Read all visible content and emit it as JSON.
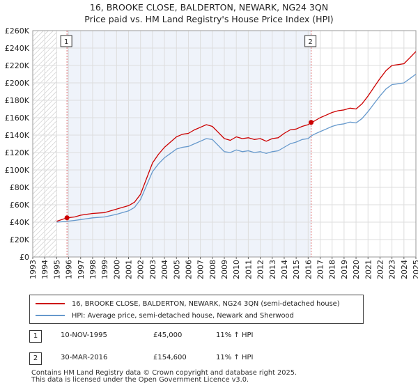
{
  "title_line1": "16, BROOKE CLOSE, BALDERTON, NEWARK, NG24 3QN",
  "title_line2": "Price paid vs. HM Land Registry's House Price Index (HPI)",
  "chart_data": {
    "type": "line",
    "title": "16, BROOKE CLOSE, BALDERTON, NEWARK, NG24 3QN",
    "subtitle": "Price paid vs. HM Land Registry's House Price Index (HPI)",
    "xlabel": "",
    "ylabel": "",
    "xlim": [
      1993,
      2025
    ],
    "ylim": [
      0,
      260000
    ],
    "x_ticks": [
      1993,
      1994,
      1995,
      1996,
      1997,
      1998,
      1999,
      2000,
      2001,
      2002,
      2003,
      2004,
      2005,
      2006,
      2007,
      2008,
      2009,
      2010,
      2011,
      2012,
      2013,
      2014,
      2015,
      2016,
      2017,
      2018,
      2019,
      2020,
      2021,
      2022,
      2023,
      2024,
      2025
    ],
    "y_ticks": [
      0,
      20000,
      40000,
      60000,
      80000,
      100000,
      120000,
      140000,
      160000,
      180000,
      200000,
      220000,
      240000,
      260000
    ],
    "y_tick_labels": [
      "£0",
      "£20K",
      "£40K",
      "£60K",
      "£80K",
      "£100K",
      "£120K",
      "£140K",
      "£160K",
      "£180K",
      "£200K",
      "£220K",
      "£240K",
      "£260K"
    ],
    "grid": true,
    "hatched_regions": [
      [
        1993,
        1995.0
      ],
      [
        2025,
        2025.3
      ]
    ],
    "shaded_region": [
      1995.86,
      2016.25
    ],
    "series": [
      {
        "name": "16, BROOKE CLOSE, BALDERTON, NEWARK, NG24 3QN (semi-detached house)",
        "color": "#cc0000",
        "x": [
          1995.0,
          1995.86,
          1996.5,
          1997.0,
          1998.0,
          1999.0,
          2000.0,
          2000.5,
          2001.0,
          2001.5,
          2002.0,
          2002.5,
          2003.0,
          2003.5,
          2004.0,
          2004.5,
          2005.0,
          2005.5,
          2006.0,
          2006.5,
          2007.0,
          2007.5,
          2008.0,
          2008.5,
          2009.0,
          2009.5,
          2010.0,
          2010.5,
          2011.0,
          2011.5,
          2012.0,
          2012.5,
          2013.0,
          2013.5,
          2014.0,
          2014.5,
          2015.0,
          2015.5,
          2016.0,
          2016.25,
          2016.5,
          2017.0,
          2017.5,
          2018.0,
          2018.5,
          2019.0,
          2019.5,
          2020.0,
          2020.5,
          2021.0,
          2021.5,
          2022.0,
          2022.5,
          2023.0,
          2023.5,
          2024.0,
          2024.5,
          2025.0
        ],
        "y": [
          41000,
          45000,
          46000,
          48000,
          50000,
          51000,
          55000,
          57000,
          59000,
          63000,
          72000,
          90000,
          108000,
          118000,
          126000,
          132000,
          138000,
          141000,
          142000,
          146000,
          149000,
          152000,
          150000,
          143000,
          136000,
          134000,
          138000,
          136000,
          137000,
          135000,
          136000,
          133000,
          136000,
          137000,
          142000,
          146000,
          147000,
          150000,
          152000,
          154600,
          156000,
          160000,
          163000,
          166000,
          168000,
          169000,
          171000,
          170000,
          176000,
          185000,
          195000,
          205000,
          214000,
          220000,
          221000,
          222000,
          229000,
          236000
        ]
      },
      {
        "name": "HPI: Average price, semi-detached house, Newark and Sherwood",
        "color": "#6699cc",
        "x": [
          1995.0,
          1995.86,
          1996.5,
          1997.0,
          1998.0,
          1999.0,
          2000.0,
          2000.5,
          2001.0,
          2001.5,
          2002.0,
          2002.5,
          2003.0,
          2003.5,
          2004.0,
          2004.5,
          2005.0,
          2005.5,
          2006.0,
          2006.5,
          2007.0,
          2007.5,
          2008.0,
          2008.5,
          2009.0,
          2009.5,
          2010.0,
          2010.5,
          2011.0,
          2011.5,
          2012.0,
          2012.5,
          2013.0,
          2013.5,
          2014.0,
          2014.5,
          2015.0,
          2015.5,
          2016.0,
          2016.25,
          2016.5,
          2017.0,
          2017.5,
          2018.0,
          2018.5,
          2019.0,
          2019.5,
          2020.0,
          2020.5,
          2021.0,
          2021.5,
          2022.0,
          2022.5,
          2023.0,
          2023.5,
          2024.0,
          2024.5,
          2025.0
        ],
        "y": [
          40000,
          41000,
          42000,
          43000,
          45000,
          46000,
          49000,
          51000,
          53000,
          57000,
          66000,
          82000,
          98000,
          107000,
          114000,
          119000,
          124000,
          126000,
          127000,
          130000,
          133000,
          136000,
          135000,
          128000,
          121000,
          120000,
          123000,
          121000,
          122000,
          120000,
          121000,
          119000,
          121000,
          122000,
          126000,
          130000,
          132000,
          135000,
          136000,
          139000,
          141000,
          144000,
          147000,
          150000,
          152000,
          153000,
          155000,
          154000,
          159000,
          167000,
          176000,
          185000,
          193000,
          198000,
          199000,
          200000,
          205000,
          210000
        ]
      }
    ],
    "annotations": [
      {
        "label": "1",
        "x": 1995.86,
        "y": 45000
      },
      {
        "label": "2",
        "x": 2016.25,
        "y": 154600
      }
    ]
  },
  "legend": {
    "entry1": "16, BROOKE CLOSE, BALDERTON, NEWARK, NG24 3QN (semi-detached house)",
    "entry2": "HPI: Average price, semi-detached house, Newark and Sherwood"
  },
  "transactions": [
    {
      "badge": "1",
      "date": "10-NOV-1995",
      "price": "£45,000",
      "hpi": "11% ↑ HPI"
    },
    {
      "badge": "2",
      "date": "30-MAR-2016",
      "price": "£154,600",
      "hpi": "11% ↑ HPI"
    }
  ],
  "footer": {
    "line1": "Contains HM Land Registry data © Crown copyright and database right 2025.",
    "line2": "This data is licensed under the Open Government Licence v3.0."
  }
}
